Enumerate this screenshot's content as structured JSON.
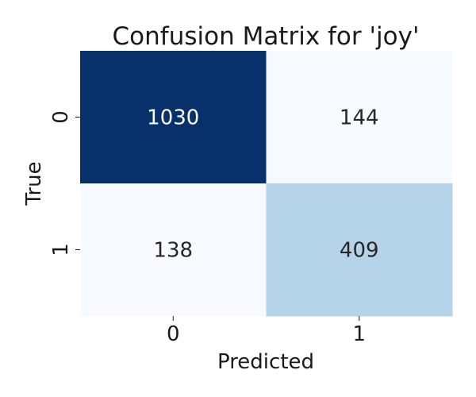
{
  "chart_data": {
    "type": "heatmap",
    "title": "Confusion Matrix for 'joy'",
    "xlabel": "Predicted",
    "ylabel": "True",
    "x_categories": [
      "0",
      "1"
    ],
    "y_categories": [
      "0",
      "1"
    ],
    "values": [
      [
        1030,
        144
      ],
      [
        138,
        409
      ]
    ],
    "colormap": "Blues",
    "color_low": "#f7fbff",
    "color_high": "#08306b",
    "text_dark": "#262626",
    "text_light": "#ffffff",
    "colorbar": false
  }
}
